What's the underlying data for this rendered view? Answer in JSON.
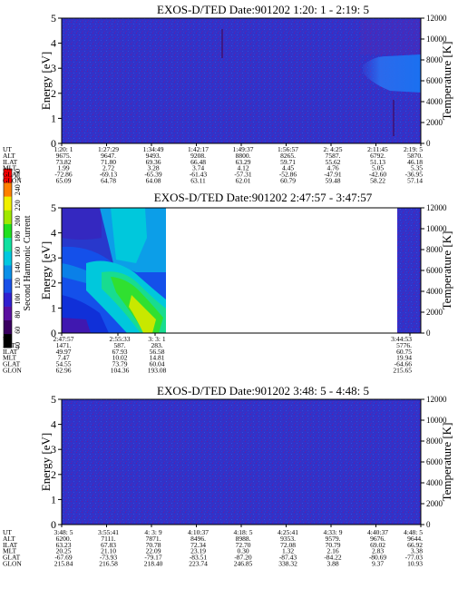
{
  "colorbar": {
    "label": "Second Harmonic Current",
    "ticks": [
      "40",
      "60",
      "80",
      "100",
      "120",
      "140",
      "160",
      "180",
      "200",
      "220",
      "240",
      "250"
    ],
    "colors": [
      "#000000",
      "#3a0060",
      "#5a10a0",
      "#3020d0",
      "#1850e8",
      "#0a90e8",
      "#00c8e0",
      "#10e0a0",
      "#20e020",
      "#a0e800",
      "#f0f000",
      "#ff8000",
      "#ff0000"
    ]
  },
  "chart_data": [
    {
      "type": "heatmap",
      "title": "EXOS-D/TED   Date:901202  1:20: 1 - 2:19: 5",
      "ylabel": "Energy [eV]",
      "y2label": "Temperature [K]",
      "ylim": [
        0,
        5
      ],
      "yticks": [
        0,
        1,
        2,
        3,
        4,
        5
      ],
      "y2lim": [
        0,
        12000
      ],
      "y2ticks": [
        0,
        2000,
        4000,
        6000,
        8000,
        10000,
        12000
      ],
      "x_ticks": [
        "1:20: 1",
        "1:27:29",
        "1:34:49",
        "1:42:17",
        "1:49:37",
        "1:56:57",
        "2: 4:25",
        "2:11:45",
        "2:19: 5"
      ],
      "ephemeris": [
        {
          "label": "UT",
          "values": [
            "1:20: 1",
            "1:27:29",
            "1:34:49",
            "1:42:17",
            "1:49:37",
            "1:56:57",
            "2: 4:25",
            "2:11:45",
            "2:19: 5"
          ]
        },
        {
          "label": "ALT",
          "values": [
            "9675.",
            "9647.",
            "9493.",
            "9208.",
            "8800.",
            "8265.",
            "7587.",
            "6792.",
            "5870."
          ]
        },
        {
          "label": "ILAT",
          "values": [
            "73.82",
            "71.80",
            "69.36",
            "66.48",
            "63.29",
            "59.71",
            "55.62",
            "51.13",
            "46.18"
          ]
        },
        {
          "label": "MLT",
          "values": [
            "1.99",
            "2.72",
            "3.28",
            "3.74",
            "4.12",
            "4.45",
            "4.76",
            "5.05",
            "5.35"
          ]
        },
        {
          "label": "GLAT",
          "values": [
            "-72.86",
            "-69.13",
            "-65.39",
            "-61.43",
            "-57.31",
            "-52.86",
            "-47.91",
            "-42.60",
            "-36.95"
          ]
        },
        {
          "label": "GLON",
          "values": [
            "65.09",
            "64.78",
            "64.08",
            "63.11",
            "62.01",
            "60.79",
            "59.48",
            "58.22",
            "57.14"
          ]
        }
      ]
    },
    {
      "type": "heatmap",
      "title": "EXOS-D/TED   Date:901202  2:47:57 - 3:47:57",
      "ylabel": "Energy [eV]",
      "y2label": "Temperature [K]",
      "ylim": [
        0,
        5
      ],
      "yticks": [
        0,
        1,
        2,
        3,
        4,
        5
      ],
      "y2lim": [
        0,
        12000
      ],
      "y2ticks": [
        0,
        2000,
        4000,
        6000,
        8000,
        10000,
        12000
      ],
      "x_ticks": [
        "2:47:57",
        "2:55:33",
        "3: 3: 1",
        "3:44:53"
      ],
      "ephemeris": [
        {
          "label": "UT",
          "values": [
            "2:47:57",
            "2:55:33",
            "3: 3: 1",
            "3:44:53"
          ]
        },
        {
          "label": "ALT",
          "values": [
            "1471.",
            "587.",
            "283.",
            "5776."
          ]
        },
        {
          "label": "ILAT",
          "values": [
            "49.97",
            "67.93",
            "56.58",
            "60.75"
          ]
        },
        {
          "label": "MLT",
          "values": [
            "7.47",
            "10.02",
            "14.81",
            "19.94"
          ]
        },
        {
          "label": "GLAT",
          "values": [
            "54.55",
            "73.79",
            "60.04",
            "-64.66"
          ]
        },
        {
          "label": "GLON",
          "values": [
            "62.96",
            "104.36",
            "193.08",
            "215.65"
          ]
        }
      ]
    },
    {
      "type": "heatmap",
      "title": "EXOS-D/TED   Date:901202  3:48: 5 - 4:48: 5",
      "ylabel": "Energy [eV]",
      "y2label": "Temperature [K]",
      "ylim": [
        0,
        5
      ],
      "yticks": [
        0,
        1,
        2,
        3,
        4,
        5
      ],
      "y2lim": [
        0,
        12000
      ],
      "y2ticks": [
        0,
        2000,
        4000,
        6000,
        8000,
        10000,
        12000
      ],
      "x_ticks": [
        "3:48: 5",
        "3:55:41",
        "4: 3: 9",
        "4:10:37",
        "4:18: 5",
        "4:25:41",
        "4:33: 9",
        "4:40:37",
        "4:48: 5"
      ],
      "ephemeris": [
        {
          "label": "UT",
          "values": [
            "3:48: 5",
            "3:55:41",
            "4: 3: 9",
            "4:10:37",
            "4:18: 5",
            "4:25:41",
            "4:33: 9",
            "4:40:37",
            "4:48: 5"
          ]
        },
        {
          "label": "ALT",
          "values": [
            "6200.",
            "7111.",
            "7871.",
            "8496.",
            "8988.",
            "9353.",
            "9579.",
            "9676.",
            "9644."
          ]
        },
        {
          "label": "ILAT",
          "values": [
            "63.23",
            "67.83",
            "70.78",
            "72.34",
            "72.70",
            "72.08",
            "70.79",
            "69.02",
            "66.92"
          ]
        },
        {
          "label": "MLT",
          "values": [
            "20.25",
            "21.10",
            "22.09",
            "23.19",
            "0.30",
            "1.32",
            "2.16",
            "2.83",
            "3.38"
          ]
        },
        {
          "label": "GLAT",
          "values": [
            "-67.69",
            "-73.93",
            "-79.17",
            "-83.51",
            "-87.20",
            "-87.43",
            "-84.22",
            "-80.69",
            "-77.03"
          ]
        },
        {
          "label": "GLON",
          "values": [
            "215.84",
            "216.58",
            "218.40",
            "223.74",
            "246.85",
            "338.32",
            "3.88",
            "9.37",
            "10.93"
          ]
        }
      ]
    }
  ]
}
